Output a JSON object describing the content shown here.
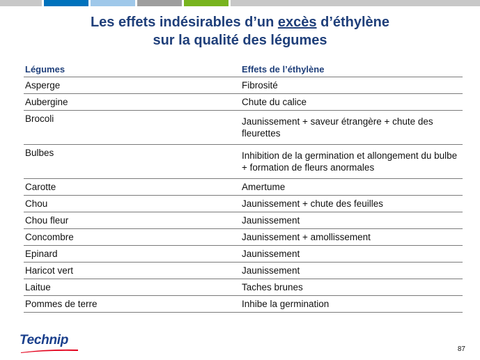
{
  "colors": {
    "title": "#1f3f7a",
    "top_bars": [
      "#c8c8c8",
      "#0072bc",
      "#9fc8ea",
      "#9e9e9e",
      "#78b41e",
      "#c8c8c8"
    ]
  },
  "title": {
    "line1_a": "Les effets indésirables d’un ",
    "line1_u": "excès",
    "line1_b": " d’éthylène",
    "line2": "sur la qualité des légumes"
  },
  "table": {
    "headers": [
      "Légumes",
      "Effets de l’éthylène"
    ],
    "rows": [
      {
        "vegetable": "Asperge",
        "effect": "Fibrosité"
      },
      {
        "vegetable": "Aubergine",
        "effect": "Chute du calice"
      },
      {
        "vegetable": "Brocoli",
        "effect": "Jaunissement + saveur étrangère + chute des fleurettes"
      },
      {
        "vegetable": "Bulbes",
        "effect": "Inhibition de la germination et allongement du bulbe + formation de fleurs anormales"
      },
      {
        "vegetable": "Carotte",
        "effect": "Amertume"
      },
      {
        "vegetable": "Chou",
        "effect": "Jaunissement + chute des feuilles"
      },
      {
        "vegetable": "Chou fleur",
        "effect": "Jaunissement"
      },
      {
        "vegetable": "Concombre",
        "effect": "Jaunissement + amollissement"
      },
      {
        "vegetable": "Epinard",
        "effect": "Jaunissement"
      },
      {
        "vegetable": "Haricot vert",
        "effect": "Jaunissement"
      },
      {
        "vegetable": "Laitue",
        "effect": "Taches brunes"
      },
      {
        "vegetable": "Pommes de terre",
        "effect": "Inhibe la germination"
      }
    ]
  },
  "footer": {
    "logo_text": "Technip",
    "page_number": "87"
  }
}
